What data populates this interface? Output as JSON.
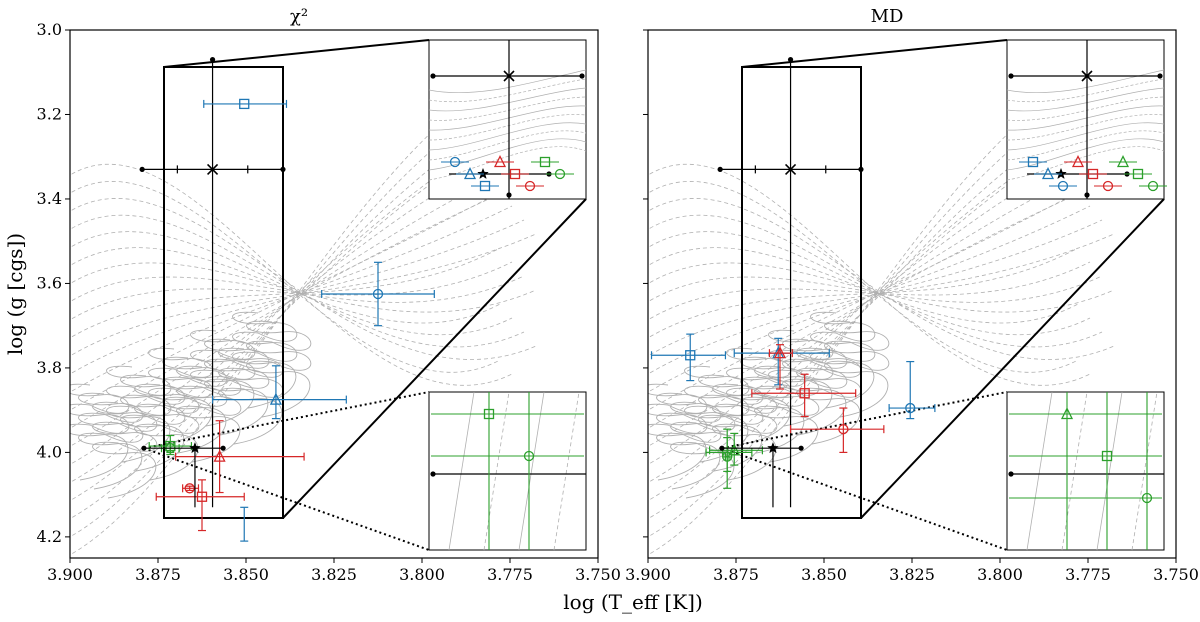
{
  "chart_data": {
    "type": "scatter",
    "xlabel": "log (T_eff [K])",
    "ylabel": "log (g [cgs])",
    "xlim": [
      3.9,
      3.75
    ],
    "ylim": [
      4.25,
      3.0
    ],
    "xticks": [
      "3.900",
      "3.875",
      "3.850",
      "3.825",
      "3.800",
      "3.775",
      "3.750"
    ],
    "yticks": [
      "3.0",
      "3.2",
      "3.4",
      "3.6",
      "3.8",
      "4.0",
      "4.2"
    ],
    "tick_values_x": [
      3.9,
      3.875,
      3.85,
      3.825,
      3.8,
      3.775,
      3.75
    ],
    "tick_values_y": [
      3.0,
      3.2,
      3.4,
      3.6,
      3.8,
      4.0,
      4.2
    ],
    "colors": {
      "blue": "#1f77b4",
      "red": "#d62728",
      "green": "#2ca02c",
      "black": "#000000",
      "track": "#b0b0b0"
    },
    "panels": [
      {
        "title_text": "χ²",
        "reference": {
          "marker": "star",
          "color": "black",
          "teff": 3.8645,
          "logg": 3.99,
          "teff_lo": 3.879,
          "teff_hi": 3.8565,
          "logg_lo": 3.99,
          "logg_hi": 4.13
        },
        "cross": {
          "marker": "x",
          "color": "black",
          "teff": 3.8595,
          "logg": 3.33,
          "teff_lo": 3.8795,
          "teff_hi": 3.8395,
          "logg_lo": 3.07,
          "logg_hi": 4.13
        },
        "points": [
          {
            "marker": "circle",
            "color": "blue",
            "teff": 3.8125,
            "logg": 3.625,
            "teff_lo": 3.8285,
            "teff_hi": 3.7965,
            "logg_lo": 3.55,
            "logg_hi": 3.7
          },
          {
            "marker": "triangle",
            "color": "blue",
            "teff": 3.8415,
            "logg": 3.875,
            "teff_lo": 3.8595,
            "teff_hi": 3.8215,
            "logg_lo": 3.795,
            "logg_hi": 3.92
          },
          {
            "marker": "square",
            "color": "blue",
            "teff": 3.8505,
            "logg": 3.175,
            "teff_lo": 3.862,
            "teff_hi": 3.8385,
            "logg_lo": 4.13,
            "logg_hi": 4.21
          },
          {
            "marker": "triangle",
            "color": "red",
            "teff": 3.8575,
            "logg": 4.01,
            "teff_lo": 3.87,
            "teff_hi": 3.8335,
            "logg_lo": 3.925,
            "logg_hi": 4.095
          },
          {
            "marker": "square",
            "color": "red",
            "teff": 3.8625,
            "logg": 4.105,
            "teff_lo": 3.8755,
            "teff_hi": 3.8505,
            "logg_lo": 4.065,
            "logg_hi": 4.185
          },
          {
            "marker": "circle",
            "color": "red",
            "teff": 3.866,
            "logg": 4.085,
            "teff_lo": 3.868,
            "teff_hi": 3.8635,
            "logg_lo": 4.08,
            "logg_hi": 4.09
          },
          {
            "marker": "square",
            "color": "green",
            "teff": 3.8715,
            "logg": 3.985,
            "teff_lo": 3.8775,
            "teff_hi": 3.8655,
            "logg_lo": 3.96,
            "logg_hi": 4.005
          },
          {
            "marker": "circle",
            "color": "green",
            "teff": 3.8715,
            "logg": 3.99,
            "teff_lo": 3.874,
            "teff_hi": 3.869,
            "logg_lo": 3.98,
            "logg_hi": 4.0
          }
        ]
      },
      {
        "title_text": "MD",
        "reference": {
          "marker": "star",
          "color": "black",
          "teff": 3.8645,
          "logg": 3.99,
          "teff_lo": 3.879,
          "teff_hi": 3.8565,
          "logg_lo": 3.99,
          "logg_hi": 4.13
        },
        "cross": {
          "marker": "x",
          "color": "black",
          "teff": 3.8595,
          "logg": 3.33,
          "teff_lo": 3.8795,
          "teff_hi": 3.8395,
          "logg_lo": 3.07,
          "logg_hi": 4.13
        },
        "points": [
          {
            "marker": "square",
            "color": "blue",
            "teff": 3.888,
            "logg": 3.77,
            "teff_lo": 3.899,
            "teff_hi": 3.878,
            "logg_lo": 3.72,
            "logg_hi": 3.83
          },
          {
            "marker": "triangle",
            "color": "blue",
            "teff": 3.863,
            "logg": 3.765,
            "teff_lo": 3.8755,
            "teff_hi": 3.8485,
            "logg_lo": 3.73,
            "logg_hi": 3.84
          },
          {
            "marker": "circle",
            "color": "blue",
            "teff": 3.8255,
            "logg": 3.895,
            "teff_lo": 3.8315,
            "teff_hi": 3.8185,
            "logg_lo": 3.785,
            "logg_hi": 3.92
          },
          {
            "marker": "triangle",
            "color": "red",
            "teff": 3.8625,
            "logg": 3.765,
            "teff_lo": 3.8655,
            "teff_hi": 3.859,
            "logg_lo": 3.745,
            "logg_hi": 3.85
          },
          {
            "marker": "square",
            "color": "red",
            "teff": 3.8555,
            "logg": 3.86,
            "teff_lo": 3.8705,
            "teff_hi": 3.841,
            "logg_lo": 3.815,
            "logg_hi": 3.915
          },
          {
            "marker": "circle",
            "color": "red",
            "teff": 3.8445,
            "logg": 3.945,
            "teff_lo": 3.8595,
            "teff_hi": 3.833,
            "logg_lo": 3.895,
            "logg_hi": 4.0
          },
          {
            "marker": "triangle",
            "color": "green",
            "teff": 3.8755,
            "logg": 3.995,
            "teff_lo": 3.8825,
            "teff_hi": 3.8675,
            "logg_lo": 3.955,
            "logg_hi": 4.03
          },
          {
            "marker": "square",
            "color": "green",
            "teff": 3.8775,
            "logg": 4.0,
            "teff_lo": 3.8835,
            "teff_hi": 3.8705,
            "logg_lo": 3.965,
            "logg_hi": 4.045
          },
          {
            "marker": "circle",
            "color": "green",
            "teff": 3.8775,
            "logg": 4.01,
            "teff_lo": 3.878,
            "teff_hi": 3.877,
            "logg_lo": 3.945,
            "logg_hi": 4.085
          }
        ]
      }
    ]
  }
}
